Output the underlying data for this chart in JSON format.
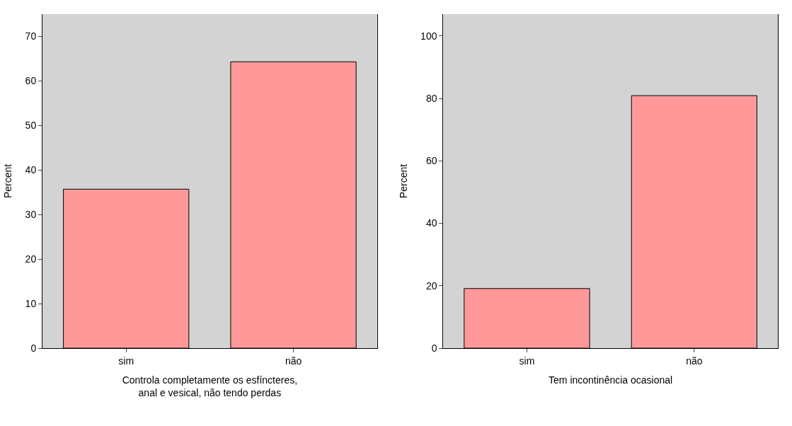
{
  "chart_data": [
    {
      "type": "bar",
      "xlabel": "Controla completamente os esfíncteres, anal e vesical, não tendo perdas",
      "ylabel": "Percent",
      "categories": [
        "sim",
        "não"
      ],
      "values": [
        35.7,
        64.3
      ],
      "color": "#ff9999",
      "ylim": [
        0,
        75
      ],
      "yticks": [
        0,
        10,
        20,
        30,
        40,
        50,
        60,
        70
      ],
      "grid": false,
      "legend": false
    },
    {
      "type": "bar",
      "xlabel": "Tem incontinência ocasional",
      "ylabel": "Percent",
      "categories": [
        "sim",
        "não"
      ],
      "values": [
        19.1,
        80.9
      ],
      "color": "#ff9999",
      "ylim": [
        0,
        107
      ],
      "yticks": [
        0,
        20,
        40,
        60,
        80,
        100
      ],
      "grid": false,
      "legend": false
    }
  ]
}
